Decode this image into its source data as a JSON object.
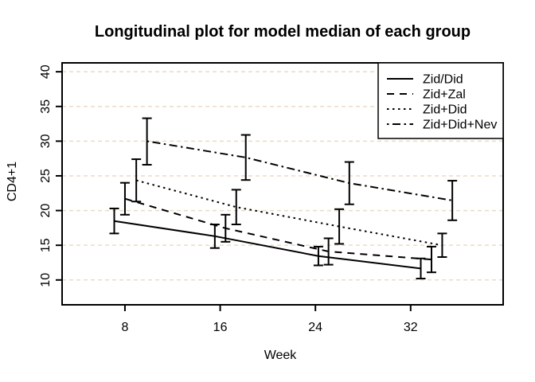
{
  "colors": {
    "foreground": "#000000",
    "background": "#ffffff",
    "gridline": "#e9dcc3"
  },
  "chart_data": {
    "type": "line",
    "title": "Longitudinal plot for model median of each group",
    "xlabel": "Week",
    "ylabel": "CD4+1",
    "xlim": [
      2.72,
      39.77
    ],
    "ylim": [
      6.42,
      41.28
    ],
    "xticks": [
      8,
      16,
      24,
      32
    ],
    "yticks": [
      10,
      15,
      20,
      25,
      30,
      35,
      40
    ],
    "grid": {
      "horizontal": true,
      "vertical": false,
      "style": "dashed",
      "color": "#e9dcc3"
    },
    "legend": {
      "position": "topright",
      "entries": [
        "Zid/Did",
        "Zid+Zal",
        "Zid+Did",
        "Zid+Did+Nev"
      ]
    },
    "series": [
      {
        "name": "Zid/Did",
        "linetype": "solid",
        "x": [
          7.1,
          15.55,
          24.25,
          32.85
        ],
        "y": [
          18.5,
          16.3,
          13.45,
          11.65
        ],
        "error_low": [
          16.7,
          14.6,
          12.1,
          10.2
        ],
        "error_high": [
          20.3,
          18.0,
          14.8,
          13.1
        ]
      },
      {
        "name": "Zid+Zal",
        "linetype": "dashed",
        "x": [
          8.0,
          16.45,
          25.1,
          33.75
        ],
        "y": [
          21.7,
          17.45,
          14.1,
          12.95
        ],
        "error_low": [
          19.4,
          15.5,
          12.2,
          11.1
        ],
        "error_high": [
          24.0,
          19.4,
          16.0,
          14.8
        ]
      },
      {
        "name": "Zid+Did",
        "linetype": "dotted",
        "x": [
          8.95,
          17.35,
          26.0,
          34.65
        ],
        "y": [
          24.35,
          20.5,
          17.7,
          15.0
        ],
        "error_low": [
          21.3,
          18.0,
          15.2,
          13.3
        ],
        "error_high": [
          27.4,
          23.0,
          20.2,
          16.7
        ]
      },
      {
        "name": "Zid+Did+Nev",
        "linetype": "dotdash",
        "x": [
          9.85,
          18.15,
          26.85,
          35.5
        ],
        "y": [
          30.0,
          27.65,
          23.95,
          21.45
        ],
        "error_low": [
          26.6,
          24.4,
          20.9,
          18.6
        ],
        "error_high": [
          33.3,
          30.9,
          27.0,
          24.3
        ]
      }
    ]
  }
}
